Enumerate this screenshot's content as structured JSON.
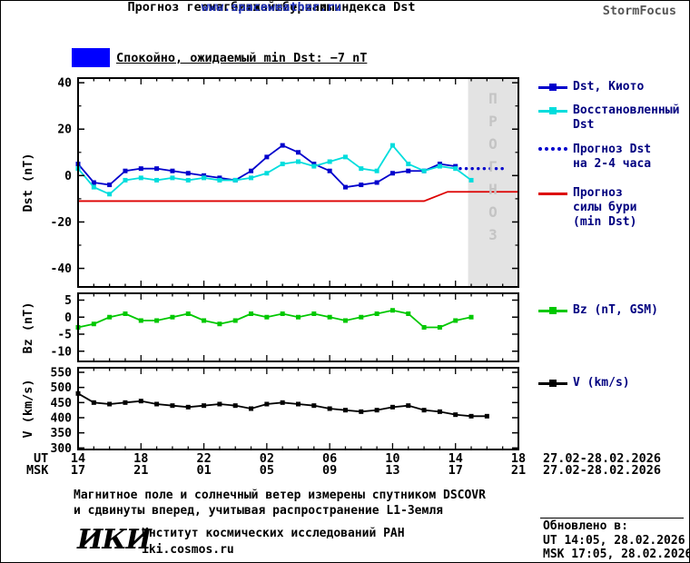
{
  "header": {
    "title_line1": "Прогноз геомагнитной бури и индекса Dst",
    "title_line2": "на ближайшие часы",
    "url": "www.spaceweather.ru",
    "brand": "StormFocus"
  },
  "status": {
    "label": "Спокойно, ожидаемый min Dst: −7 nT"
  },
  "colors": {
    "quiet_blue": "#0000ff",
    "kyoto": "#0000cc",
    "restored": "#00dddd",
    "forecast": "#0000cc",
    "storm": "#dd0000",
    "bz": "#00c800",
    "v": "#000000",
    "legend_text": "#000080",
    "band_fill": "#e3e3e3",
    "band_text": "#c4c4c4"
  },
  "legend": {
    "kyoto": "Dst, Киото",
    "restored_line1": "Восстановленный",
    "restored_line2": "Dst",
    "forecast_line1": "Прогноз Dst",
    "forecast_line2": "на 2-4 часа",
    "storm_line1": "Прогноз",
    "storm_line2": "силы бури",
    "storm_line3": "(min Dst)",
    "bz": "Bz (nT, GSM)",
    "v": "V (km/s)"
  },
  "axes": {
    "dst_label": "Dst (nT)",
    "bz_label": "Bz (nT)",
    "v_label": "V (km/s)",
    "ut_label": "UT",
    "msk_label": "MSK",
    "date_range": "27.02-28.02.2026"
  },
  "footer": {
    "note_line1": "Магнитное поле и солнечный ветер измерены спутником DSCOVR",
    "note_line2": "и сдвинуты вперед, учитывая распространение L1-Земля",
    "logo": "ИКИ",
    "institute": "Институт космических исследований РАН",
    "site": "iki.cosmos.ru",
    "updated_label": "Обновлено в:",
    "updated_ut": "UT  14:05, 28.02.2026",
    "updated_msk": "MSK 17:05, 28.02.2026"
  },
  "chart_data": {
    "type": "line",
    "title": "Прогноз геомагнитной бури и индекса Dst на ближайшие часы",
    "x_unit": "hours since 27.02.2026 14:00 UT",
    "xlim": [
      0,
      28
    ],
    "grid": false,
    "legend_position": "right",
    "x_major_ticks": [
      {
        "t": 0,
        "ut": "14",
        "msk": "17"
      },
      {
        "t": 4,
        "ut": "18",
        "msk": "21"
      },
      {
        "t": 8,
        "ut": "22",
        "msk": "01"
      },
      {
        "t": 12,
        "ut": "02",
        "msk": "05"
      },
      {
        "t": 16,
        "ut": "06",
        "msk": "09"
      },
      {
        "t": 20,
        "ut": "10",
        "msk": "13"
      },
      {
        "t": 24,
        "ut": "14",
        "msk": "17"
      },
      {
        "t": 28,
        "ut": "18",
        "msk": "21"
      }
    ],
    "forecast_band": {
      "from": 24.8,
      "to": 28,
      "label": "П\nР\nО\nГ\nН\nО\nЗ"
    },
    "panels": [
      {
        "id": "dst",
        "ylabel": "Dst (nT)",
        "ylim": [
          -48,
          42
        ],
        "yticks": [
          40,
          20,
          0,
          -20,
          -40
        ],
        "yminor": 10,
        "series": [
          {
            "name": "Dst, Киото",
            "slug": "dst-kyoto",
            "color": "#0000cc",
            "style": "solid",
            "marker": "square",
            "x": [
              0,
              1,
              2,
              3,
              4,
              5,
              6,
              7,
              8,
              9,
              10,
              11,
              12,
              13,
              14,
              15,
              16,
              17,
              18,
              19,
              20,
              21,
              22,
              23,
              24
            ],
            "values": [
              5,
              -3,
              -4,
              2,
              3,
              3,
              2,
              1,
              0,
              -1,
              -2,
              2,
              8,
              13,
              10,
              5,
              2,
              -5,
              -4,
              -3,
              1,
              2,
              2,
              5,
              4
            ]
          },
          {
            "name": "Восстановленный Dst",
            "slug": "dst-restored",
            "color": "#00dddd",
            "style": "solid",
            "marker": "square",
            "x": [
              0,
              1,
              2,
              3,
              4,
              5,
              6,
              7,
              8,
              9,
              10,
              11,
              12,
              13,
              14,
              15,
              16,
              17,
              18,
              19,
              20,
              21,
              22,
              23,
              24,
              25
            ],
            "values": [
              3,
              -5,
              -8,
              -2,
              -1,
              -2,
              -1,
              -2,
              -1,
              -2,
              -2,
              -1,
              1,
              5,
              6,
              4,
              6,
              8,
              3,
              2,
              13,
              5,
              2,
              4,
              3,
              -2
            ]
          },
          {
            "name": "Прогноз Dst на 2-4 часа",
            "slug": "dst-forecast",
            "color": "#0000cc",
            "style": "dotted",
            "marker": "none",
            "x": [
              24.3,
              25,
              26,
              27.3
            ],
            "values": [
              3,
              3,
              3,
              3
            ]
          },
          {
            "name": "Прогноз силы бури (min Dst)",
            "slug": "storm-forecast",
            "color": "#dd0000",
            "style": "solid",
            "marker": "none",
            "x": [
              0,
              22,
              23.5,
              28
            ],
            "values": [
              -11,
              -11,
              -7,
              -7
            ]
          }
        ]
      },
      {
        "id": "bz",
        "ylabel": "Bz (nT)",
        "ylim": [
          -13,
          7
        ],
        "yticks": [
          5,
          0,
          -5,
          -10
        ],
        "series": [
          {
            "name": "Bz (nT, GSM)",
            "slug": "bz",
            "color": "#00c800",
            "style": "solid",
            "marker": "square",
            "x": [
              0,
              1,
              2,
              3,
              4,
              5,
              6,
              7,
              8,
              9,
              10,
              11,
              12,
              13,
              14,
              15,
              16,
              17,
              18,
              19,
              20,
              21,
              22,
              23,
              24,
              25
            ],
            "values": [
              -3,
              -2,
              0,
              1,
              -1,
              -1,
              0,
              1,
              -1,
              -2,
              -1,
              1,
              0,
              1,
              0,
              1,
              0,
              -1,
              0,
              1,
              2,
              1,
              -3,
              -3,
              -1,
              0
            ]
          }
        ]
      },
      {
        "id": "v",
        "ylabel": "V (km/s)",
        "ylim": [
          295,
          565
        ],
        "yticks": [
          550,
          500,
          450,
          400,
          350,
          300
        ],
        "series": [
          {
            "name": "V (km/s)",
            "slug": "v",
            "color": "#000000",
            "style": "solid",
            "marker": "square",
            "x": [
              0,
              1,
              2,
              3,
              4,
              5,
              6,
              7,
              8,
              9,
              10,
              11,
              12,
              13,
              14,
              15,
              16,
              17,
              18,
              19,
              20,
              21,
              22,
              23,
              24,
              25,
              26
            ],
            "values": [
              480,
              450,
              445,
              450,
              455,
              445,
              440,
              435,
              440,
              445,
              440,
              430,
              445,
              450,
              445,
              440,
              430,
              425,
              420,
              425,
              435,
              440,
              425,
              420,
              410,
              405,
              405
            ]
          }
        ]
      }
    ]
  }
}
